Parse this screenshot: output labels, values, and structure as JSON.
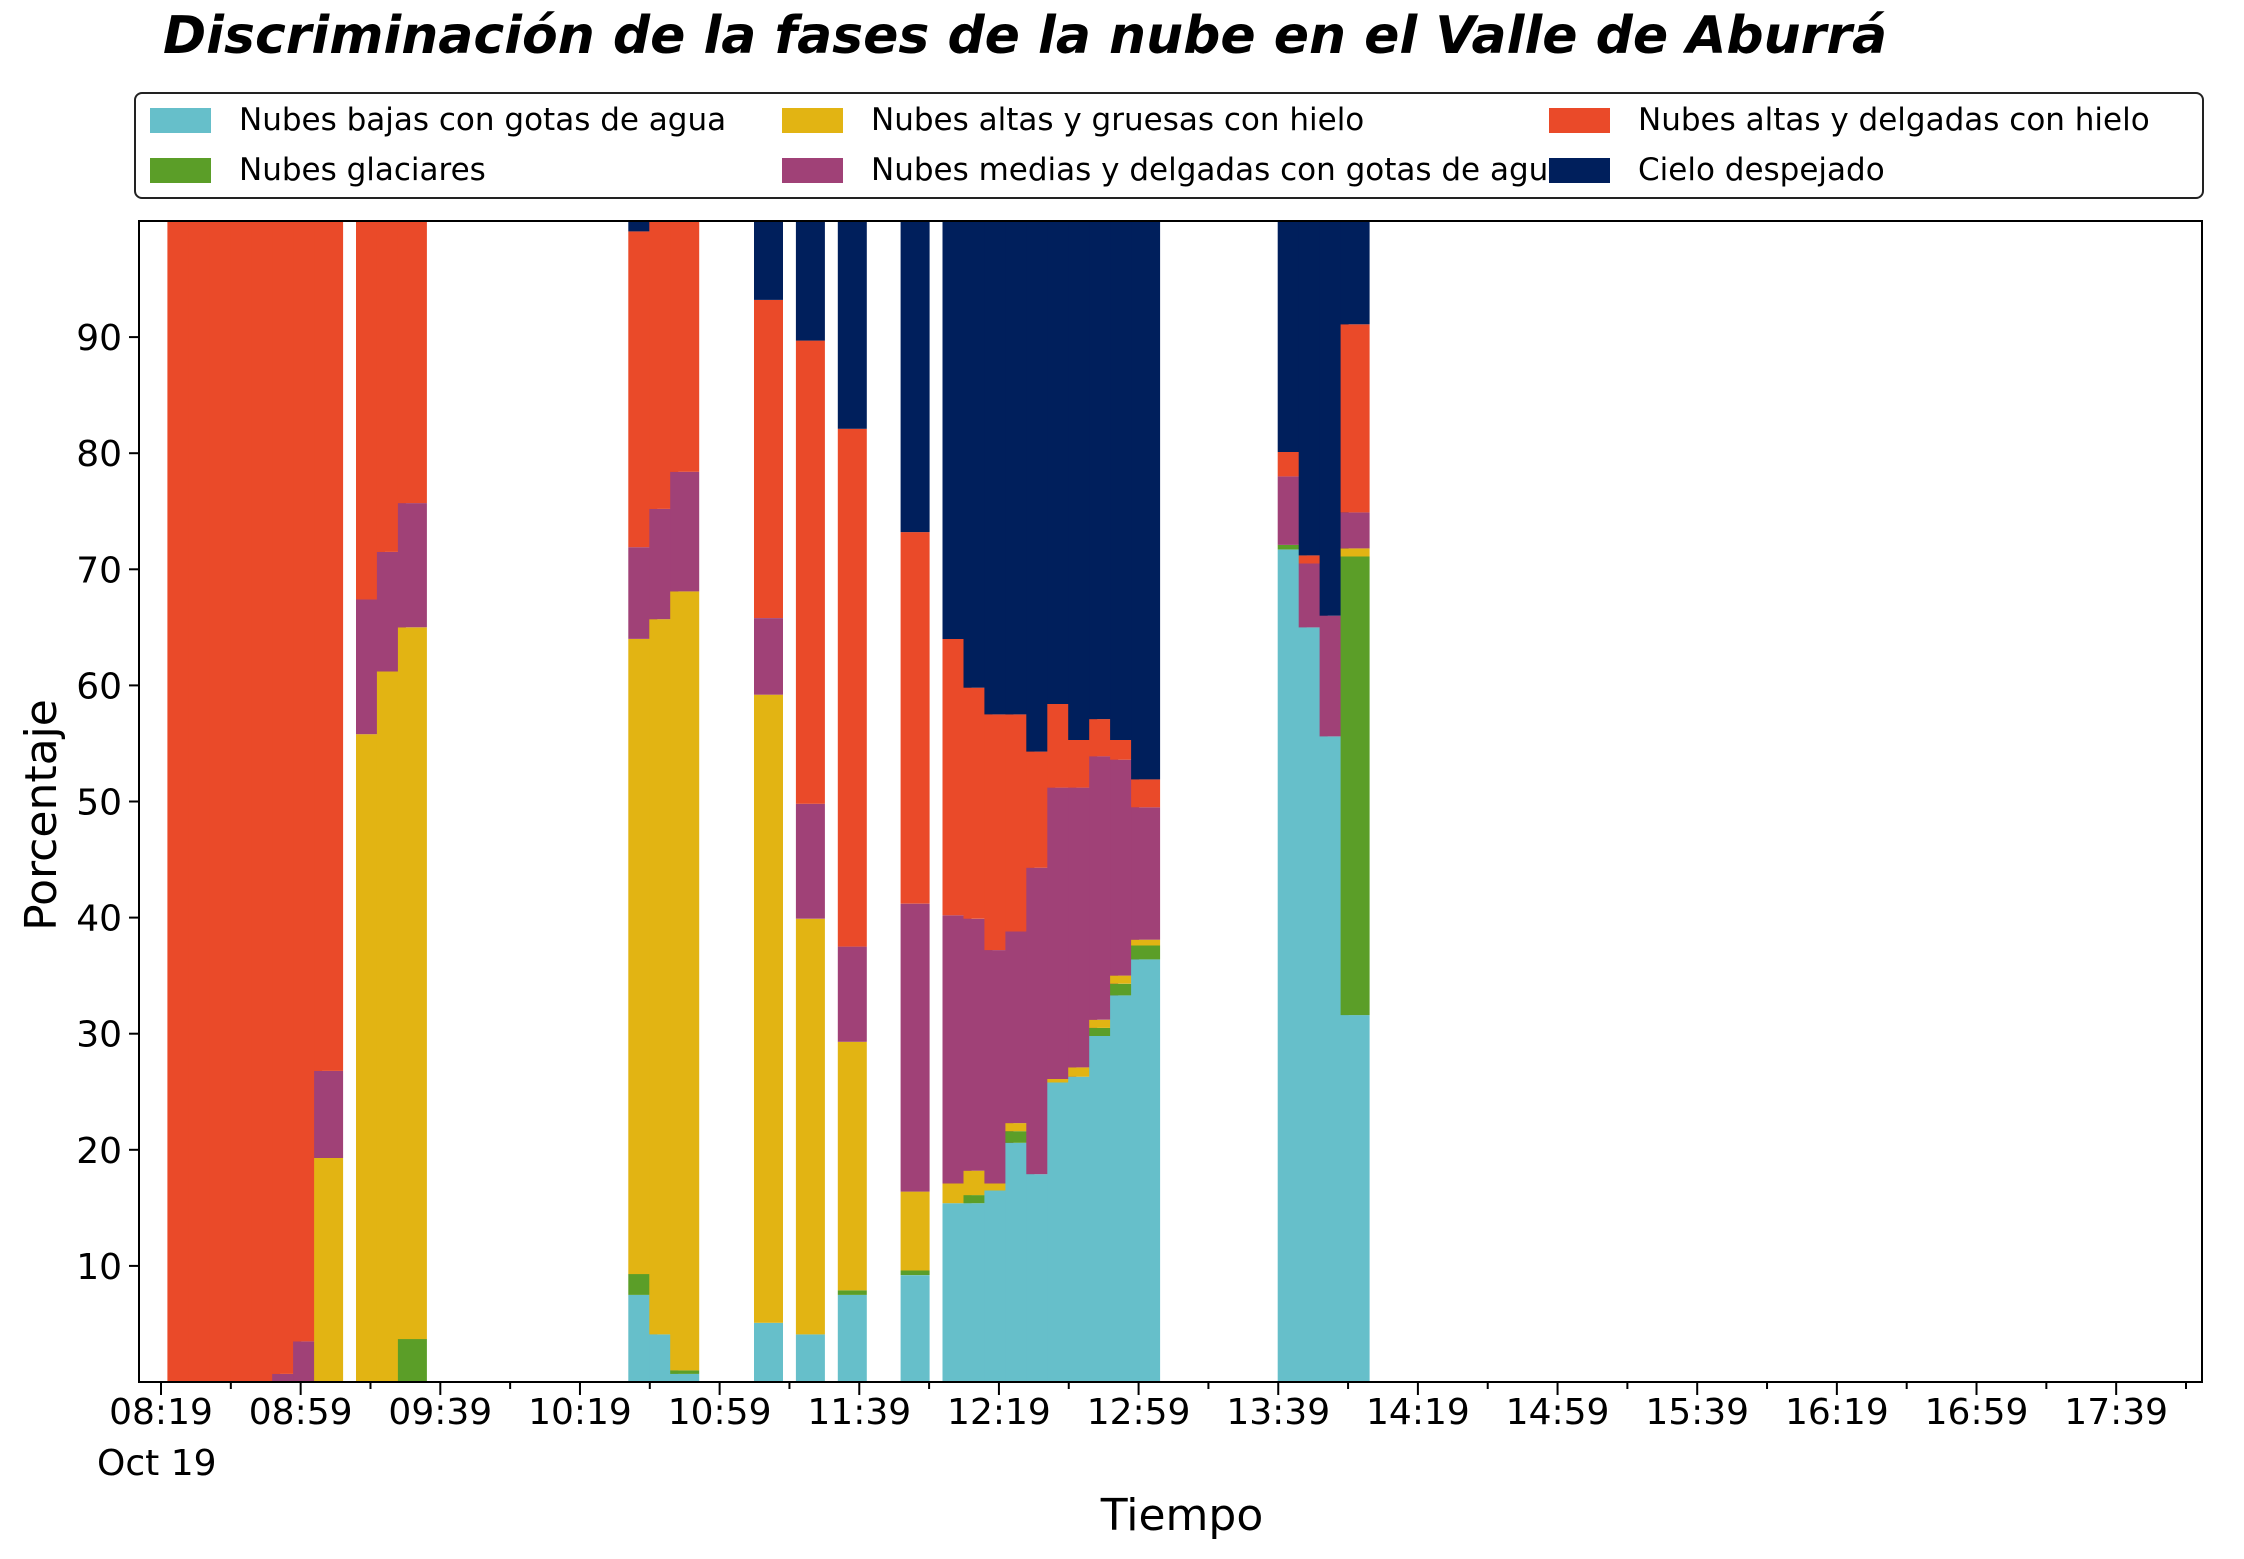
{
  "chart_data": {
    "type": "bar",
    "stacked": true,
    "title": "Discriminación de la fases de la nube en el Valle de Aburrá",
    "xlabel": "Tiempo",
    "ylabel": "Porcentaje",
    "ylim": [
      0,
      100
    ],
    "yticks": [
      10,
      20,
      30,
      40,
      50,
      60,
      70,
      80,
      90
    ],
    "grid": false,
    "legend_position": "top",
    "x_start": "08:19",
    "x_end": "17:59",
    "xtick_labels": [
      "08:19",
      "08:59",
      "09:39",
      "10:19",
      "10:59",
      "11:39",
      "12:19",
      "12:59",
      "13:39",
      "14:19",
      "14:59",
      "15:39",
      "16:19",
      "16:59",
      "17:39"
    ],
    "x_date_label": "Oct 19",
    "series": [
      {
        "name": "Nubes bajas con gotas de agua",
        "color": "#66BFCA"
      },
      {
        "name": "Nubes glaciares",
        "color": "#5B9E28"
      },
      {
        "name": "Nubes altas y gruesas con hielo",
        "color": "#E2B413"
      },
      {
        "name": "Nubes medias y delgadas con gotas de agua",
        "color": "#A04177"
      },
      {
        "name": "Nubes altas y delgadas con hielo",
        "color": "#EA4A29"
      },
      {
        "name": "Cielo despejado",
        "color": "#001F5C"
      }
    ],
    "bars": [
      {
        "time": "08:25",
        "values": [
          0,
          0,
          0,
          0,
          100,
          0
        ]
      },
      {
        "time": "08:31",
        "values": [
          0,
          0,
          0,
          0,
          100,
          0
        ]
      },
      {
        "time": "08:37",
        "values": [
          0,
          0,
          0,
          0,
          100,
          0
        ]
      },
      {
        "time": "08:43",
        "values": [
          0,
          0,
          0,
          0,
          100,
          0
        ]
      },
      {
        "time": "08:49",
        "values": [
          0,
          0,
          0,
          0,
          100,
          0
        ]
      },
      {
        "time": "08:55",
        "values": [
          0,
          0,
          0,
          0.7,
          99.3,
          0
        ]
      },
      {
        "time": "09:01",
        "values": [
          0,
          0,
          0,
          3.5,
          96.5,
          0
        ]
      },
      {
        "time": "09:07",
        "values": [
          0,
          0,
          19.3,
          7.5,
          73.2,
          0
        ]
      },
      {
        "time": "09:19",
        "values": [
          0,
          0,
          55.8,
          11.6,
          32.6,
          0
        ]
      },
      {
        "time": "09:25",
        "values": [
          0,
          0,
          61.2,
          10.3,
          28.5,
          0
        ]
      },
      {
        "time": "09:31",
        "values": [
          0,
          3.7,
          61.3,
          10.7,
          24.3,
          0
        ]
      },
      {
        "time": "10:37",
        "values": [
          7.5,
          1.8,
          54.7,
          7.9,
          27.2,
          0.9
        ]
      },
      {
        "time": "10:43",
        "values": [
          4.1,
          0,
          61.6,
          9.5,
          24.8,
          0
        ]
      },
      {
        "time": "10:49",
        "values": [
          0.7,
          0.3,
          67.1,
          10.3,
          21.6,
          0
        ]
      },
      {
        "time": "11:13",
        "values": [
          5.1,
          0,
          54.1,
          6.6,
          27.4,
          6.8
        ]
      },
      {
        "time": "11:25",
        "values": [
          4.1,
          0,
          35.8,
          9.9,
          39.9,
          10.3
        ]
      },
      {
        "time": "11:37",
        "values": [
          7.5,
          0.4,
          21.4,
          8.2,
          44.6,
          17.9
        ]
      },
      {
        "time": "11:55",
        "values": [
          9.2,
          0.4,
          6.8,
          24.8,
          32.0,
          26.8
        ]
      },
      {
        "time": "12:07",
        "values": [
          15.4,
          0,
          1.7,
          23.1,
          23.8,
          36.0
        ]
      },
      {
        "time": "12:13",
        "values": [
          15.4,
          0.7,
          2.1,
          21.7,
          19.9,
          40.2
        ]
      },
      {
        "time": "12:19",
        "values": [
          16.5,
          0,
          0.6,
          20.1,
          20.3,
          42.5
        ]
      },
      {
        "time": "12:25",
        "values": [
          20.6,
          1.0,
          0.7,
          16.5,
          18.7,
          42.5
        ]
      },
      {
        "time": "12:31",
        "values": [
          17.9,
          0,
          0,
          26.4,
          10.0,
          45.7
        ]
      },
      {
        "time": "12:37",
        "values": [
          25.8,
          0,
          0.3,
          25.1,
          7.2,
          41.6
        ]
      },
      {
        "time": "12:43",
        "values": [
          26.3,
          0,
          0.8,
          24.1,
          4.1,
          44.7
        ]
      },
      {
        "time": "12:49",
        "values": [
          29.8,
          0.7,
          0.7,
          22.7,
          3.2,
          42.9
        ]
      },
      {
        "time": "12:55",
        "values": [
          33.3,
          1.0,
          0.7,
          18.6,
          1.7,
          44.7
        ]
      },
      {
        "time": "13:01",
        "values": [
          36.4,
          1.2,
          0.5,
          11.4,
          2.4,
          48.1
        ]
      },
      {
        "time": "13:43",
        "values": [
          71.7,
          0.4,
          0,
          5.9,
          2.1,
          19.9
        ]
      },
      {
        "time": "13:49",
        "values": [
          65.0,
          0,
          0,
          5.5,
          0.7,
          28.8
        ]
      },
      {
        "time": "13:55",
        "values": [
          55.6,
          0,
          0,
          10.4,
          0,
          34.0
        ]
      },
      {
        "time": "14:01",
        "values": [
          31.6,
          39.5,
          0.7,
          3.1,
          16.2,
          8.9
        ]
      }
    ]
  },
  "legend": {
    "items": [
      "Nubes bajas con gotas de agua",
      "Nubes altas y gruesas con hielo",
      "Nubes altas y delgadas con hielo",
      "Nubes glaciares",
      "Nubes medias y delgadas con gotas de agua",
      "Cielo despejado"
    ],
    "colors": [
      "#66BFCA",
      "#E2B413",
      "#EA4A29",
      "#5B9E28",
      "#A04177",
      "#001F5C"
    ]
  }
}
